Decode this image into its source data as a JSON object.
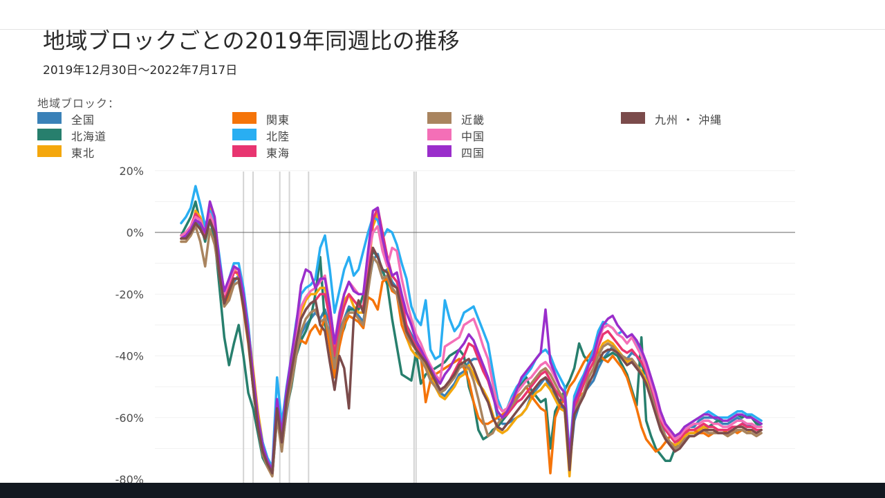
{
  "title": "地域ブロックごとの2019年同週比の推移",
  "subtitle": "2019年12月30日～2022年7月17日",
  "legend_title": "地域ブロック：",
  "chart_data": {
    "type": "line",
    "y_ticks": [
      "20%",
      "0%",
      "-20%",
      "-40%",
      "-60%",
      "-80%"
    ],
    "y_tick_values": [
      20,
      0,
      -20,
      -40,
      -60,
      -80
    ],
    "ylim": [
      -80,
      20
    ],
    "xlim": [
      0,
      122
    ],
    "grid": true,
    "legend_position": "top",
    "reference_line": 0,
    "vertical_markers": [
      13,
      15,
      20,
      22,
      26,
      48,
      49
    ],
    "series": [
      {
        "name": "全国",
        "color": "#3a81b8",
        "values": [
          -2,
          -1,
          1,
          4,
          2,
          -1,
          6,
          2,
          -12,
          -21,
          -18,
          -16,
          -14,
          -23,
          -35,
          -49,
          -62,
          -70,
          -75,
          -79,
          -60,
          -70,
          -58,
          -48,
          -40,
          -33,
          -30,
          -28,
          -26,
          -28,
          -25,
          -30,
          -42,
          -32,
          -28,
          -24,
          -25,
          -27,
          -29,
          -18,
          -9,
          -7,
          -13,
          -12,
          -16,
          -18,
          -24,
          -30,
          -33,
          -36,
          -40,
          -42,
          -45,
          -48,
          -52,
          -53,
          -51,
          -49,
          -46,
          -45,
          -42,
          -41,
          -41,
          -43,
          -47,
          -52,
          -60,
          -62,
          -62,
          -61,
          -60,
          -59,
          -57,
          -53,
          -51,
          -49,
          -47,
          -51,
          -53,
          -56,
          -58,
          -76,
          -61,
          -56,
          -52,
          -50,
          -48,
          -44,
          -41,
          -39,
          -37,
          -38,
          -40,
          -41,
          -39,
          -40,
          -43,
          -46,
          -51,
          -56,
          -62,
          -66,
          -68,
          -70,
          -69,
          -66,
          -63,
          -63,
          -61,
          -60,
          -60,
          -60,
          -61,
          -62,
          -62,
          -61,
          -60,
          -61,
          -63,
          -62,
          -63,
          -62
        ]
      },
      {
        "name": "北海道",
        "color": "#277f6d",
        "values": [
          -1,
          2,
          5,
          10,
          3,
          -3,
          4,
          -2,
          -18,
          -34,
          -43,
          -36,
          -30,
          -40,
          -52,
          -57,
          -65,
          -73,
          -76,
          -78,
          -57,
          -70,
          -57,
          -50,
          -40,
          -35,
          -32,
          -28,
          -20,
          -8,
          -30,
          -35,
          -40,
          -35,
          -31,
          -25,
          -25,
          -25,
          -20,
          -12,
          -6,
          -8,
          -12,
          -17,
          -28,
          -37,
          -46,
          -47,
          -48,
          -39,
          -49,
          -46,
          -45,
          -44,
          -43,
          -42,
          -40,
          -39,
          -38,
          -40,
          -50,
          -55,
          -64,
          -67,
          -66,
          -64,
          -63,
          -61,
          -59,
          -55,
          -51,
          -49,
          -47,
          -51,
          -53,
          -55,
          -54,
          -70,
          -58,
          -55,
          -51,
          -48,
          -44,
          -36,
          -40,
          -42,
          -41,
          -42,
          -41,
          -40,
          -39,
          -40,
          -43,
          -46,
          -51,
          -56,
          -34,
          -61,
          -66,
          -70,
          -72,
          -74,
          -74,
          -70,
          -67,
          -66,
          -65,
          -65,
          -64,
          -63,
          -63,
          -62,
          -61,
          -61,
          -61,
          -60,
          -59,
          -60,
          -59,
          -60,
          -62,
          -62
        ]
      },
      {
        "name": "東北",
        "color": "#f4a70d",
        "values": [
          -3,
          -3,
          -1,
          7,
          5,
          0,
          8,
          4,
          -10,
          -22,
          -17,
          -12,
          -14,
          -21,
          -31,
          -44,
          -58,
          -68,
          -74,
          -77,
          -55,
          -66,
          -52,
          -42,
          -34,
          -26,
          -22,
          -20,
          -20,
          -18,
          -18,
          -26,
          -38,
          -28,
          -22,
          -20,
          -24,
          -26,
          -26,
          -13,
          2,
          6,
          -2,
          -10,
          -18,
          -20,
          -25,
          -34,
          -38,
          -40,
          -41,
          -43,
          -46,
          -50,
          -53,
          -54,
          -52,
          -50,
          -47,
          -46,
          -43,
          -46,
          -49,
          -51,
          -54,
          -59,
          -64,
          -65,
          -64,
          -62,
          -60,
          -59,
          -57,
          -54,
          -52,
          -51,
          -49,
          -51,
          -54,
          -57,
          -58,
          -79,
          -57,
          -53,
          -52,
          -47,
          -44,
          -39,
          -36,
          -35,
          -36,
          -38,
          -40,
          -42,
          -41,
          -43,
          -45,
          -48,
          -53,
          -58,
          -63,
          -66,
          -68,
          -69,
          -68,
          -66,
          -65,
          -65,
          -64,
          -63,
          -64,
          -64,
          -65,
          -65,
          -66,
          -65,
          -64,
          -64,
          -65,
          -64,
          -65,
          -64
        ]
      },
      {
        "name": "関東",
        "color": "#f57409",
        "values": [
          -2,
          -2,
          0,
          3,
          1,
          -2,
          4,
          0,
          -14,
          -24,
          -20,
          -15,
          -15,
          -25,
          -36,
          -50,
          -63,
          -71,
          -76,
          -79,
          -58,
          -70,
          -56,
          -48,
          -37,
          -35,
          -36,
          -32,
          -30,
          -33,
          -27,
          -37,
          -47,
          -37,
          -30,
          -27,
          -28,
          -29,
          -31,
          -21,
          -22,
          -25,
          -16,
          -15,
          -19,
          -20,
          -30,
          -34,
          -36,
          -38,
          -40,
          -55,
          -48,
          -46,
          -45,
          -44,
          -43,
          -42,
          -41,
          -44,
          -48,
          -55,
          -60,
          -62,
          -62,
          -61,
          -60,
          -59,
          -58,
          -55,
          -53,
          -52,
          -50,
          -53,
          -55,
          -57,
          -58,
          -78,
          -60,
          -56,
          -54,
          -50,
          -48,
          -45,
          -42,
          -40,
          -38,
          -39,
          -41,
          -42,
          -40,
          -42,
          -44,
          -47,
          -52,
          -57,
          -63,
          -67,
          -69,
          -71,
          -70,
          -68,
          -66,
          -66,
          -65,
          -64,
          -64,
          -64,
          -65,
          -65,
          -66,
          -65,
          -64,
          -64,
          -65,
          -64,
          -65,
          -64
        ]
      },
      {
        "name": "北陸",
        "color": "#29aef2",
        "values": [
          3,
          5,
          8,
          15,
          9,
          2,
          7,
          3,
          -8,
          -20,
          -15,
          -10,
          -10,
          -18,
          -30,
          -46,
          -60,
          -68,
          -73,
          -76,
          -47,
          -62,
          -50,
          -40,
          -29,
          -20,
          -18,
          -17,
          -15,
          -5,
          -1,
          -12,
          -26,
          -19,
          -12,
          -8,
          -14,
          -12,
          -6,
          0,
          5,
          4,
          -2,
          1,
          0,
          -4,
          -10,
          -15,
          -24,
          -28,
          -30,
          -22,
          -38,
          -41,
          -40,
          -22,
          -28,
          -32,
          -30,
          -26,
          -25,
          -24,
          -28,
          -32,
          -36,
          -45,
          -54,
          -58,
          -57,
          -53,
          -50,
          -48,
          -46,
          -44,
          -41,
          -39,
          -38,
          -40,
          -44,
          -47,
          -50,
          -72,
          -53,
          -49,
          -46,
          -42,
          -38,
          -32,
          -29,
          -30,
          -31,
          -33,
          -32,
          -34,
          -33,
          -36,
          -40,
          -44,
          -49,
          -54,
          -59,
          -63,
          -65,
          -67,
          -66,
          -63,
          -62,
          -61,
          -60,
          -59,
          -58,
          -59,
          -60,
          -60,
          -60,
          -59,
          -58,
          -58,
          -59,
          -59,
          -60,
          -61
        ]
      },
      {
        "name": "東海",
        "color": "#e83570",
        "values": [
          -1,
          0,
          2,
          6,
          4,
          -1,
          5,
          1,
          -12,
          -22,
          -18,
          -13,
          -13,
          -22,
          -33,
          -47,
          -61,
          -70,
          -75,
          -78,
          -56,
          -68,
          -54,
          -45,
          -35,
          -28,
          -25,
          -23,
          -22,
          -20,
          -20,
          -28,
          -40,
          -30,
          -24,
          -20,
          -22,
          -24,
          -24,
          -12,
          4,
          8,
          0,
          -8,
          -14,
          -16,
          -22,
          -30,
          -34,
          -37,
          -39,
          -42,
          -45,
          -48,
          -51,
          -50,
          -48,
          -45,
          -42,
          -40,
          -36,
          -37,
          -41,
          -45,
          -48,
          -53,
          -58,
          -60,
          -59,
          -57,
          -55,
          -54,
          -52,
          -50,
          -48,
          -46,
          -45,
          -48,
          -51,
          -53,
          -55,
          -75,
          -57,
          -53,
          -49,
          -45,
          -42,
          -37,
          -33,
          -32,
          -34,
          -36,
          -38,
          -39,
          -38,
          -40,
          -42,
          -45,
          -50,
          -55,
          -61,
          -64,
          -66,
          -68,
          -67,
          -65,
          -64,
          -64,
          -63,
          -62,
          -63,
          -63,
          -64,
          -64,
          -64,
          -63,
          -63,
          -62,
          -63,
          -63,
          -64,
          -64
        ]
      },
      {
        "name": "近畿",
        "color": "#a9845f",
        "values": [
          -3,
          -3,
          -1,
          2,
          -3,
          -11,
          1,
          -4,
          -14,
          -24,
          -22,
          -17,
          -16,
          -24,
          -35,
          -50,
          -63,
          -72,
          -76,
          -79,
          -60,
          -71,
          -57,
          -49,
          -40,
          -32,
          -28,
          -26,
          -25,
          -29,
          -28,
          -33,
          -44,
          -34,
          -28,
          -26,
          -26,
          -28,
          -30,
          -19,
          -8,
          -10,
          -15,
          -14,
          -18,
          -20,
          -26,
          -33,
          -36,
          -38,
          -41,
          -44,
          -48,
          -50,
          -52,
          -51,
          -49,
          -47,
          -44,
          -43,
          -44,
          -48,
          -54,
          -61,
          -66,
          -65,
          -62,
          -60,
          -58,
          -56,
          -54,
          -52,
          -50,
          -49,
          -47,
          -45,
          -44,
          -46,
          -49,
          -52,
          -54,
          -74,
          -58,
          -55,
          -52,
          -47,
          -44,
          -40,
          -37,
          -36,
          -37,
          -39,
          -40,
          -41,
          -41,
          -43,
          -46,
          -49,
          -53,
          -58,
          -63,
          -66,
          -68,
          -70,
          -69,
          -67,
          -66,
          -66,
          -65,
          -64,
          -65,
          -65,
          -65,
          -65,
          -66,
          -65,
          -64,
          -64,
          -65,
          -65,
          -66,
          -65
        ]
      },
      {
        "name": "中国",
        "color": "#f46fb7",
        "values": [
          -1,
          0,
          2,
          5,
          4,
          0,
          6,
          2,
          -12,
          -20,
          -16,
          -12,
          -12,
          -20,
          -32,
          -46,
          -60,
          -69,
          -74,
          -77,
          -55,
          -66,
          -52,
          -42,
          -32,
          -24,
          -21,
          -19,
          -18,
          -16,
          -14,
          -24,
          -36,
          -26,
          -20,
          -16,
          -18,
          -20,
          -20,
          -8,
          0,
          2,
          -6,
          -11,
          -5,
          -6,
          -15,
          -22,
          -28,
          -33,
          -36,
          -40,
          -43,
          -46,
          -48,
          -37,
          -36,
          -35,
          -34,
          -30,
          -29,
          -28,
          -32,
          -37,
          -41,
          -49,
          -56,
          -58,
          -57,
          -54,
          -52,
          -50,
          -48,
          -47,
          -45,
          -43,
          -42,
          -44,
          -47,
          -50,
          -52,
          -73,
          -55,
          -51,
          -47,
          -43,
          -40,
          -35,
          -31,
          -30,
          -31,
          -33,
          -34,
          -36,
          -34,
          -37,
          -40,
          -44,
          -49,
          -54,
          -60,
          -63,
          -65,
          -67,
          -66,
          -64,
          -63,
          -62,
          -62,
          -61,
          -61,
          -62,
          -62,
          -63,
          -63,
          -62,
          -61,
          -61,
          -62,
          -62,
          -63,
          -63
        ]
      },
      {
        "name": "四国",
        "color": "#9a2ecb",
        "values": [
          -2,
          -1,
          1,
          4,
          3,
          0,
          10,
          5,
          -10,
          -19,
          -15,
          -11,
          -12,
          -20,
          -32,
          -46,
          -60,
          -69,
          -74,
          -77,
          -54,
          -65,
          -51,
          -40,
          -30,
          -17,
          -12,
          -13,
          -18,
          -15,
          -15,
          -24,
          -36,
          -27,
          -20,
          -16,
          -19,
          -20,
          -20,
          -6,
          7,
          8,
          -2,
          -9,
          -14,
          -13,
          -20,
          -26,
          -30,
          -35,
          -38,
          -41,
          -44,
          -47,
          -49,
          -46,
          -44,
          -41,
          -38,
          -36,
          -33,
          -35,
          -39,
          -43,
          -47,
          -53,
          -58,
          -60,
          -58,
          -55,
          -51,
          -47,
          -45,
          -43,
          -41,
          -39,
          -25,
          -42,
          -46,
          -50,
          -52,
          -73,
          -55,
          -51,
          -47,
          -43,
          -40,
          -34,
          -30,
          -28,
          -27,
          -30,
          -32,
          -34,
          -33,
          -35,
          -38,
          -42,
          -47,
          -52,
          -58,
          -62,
          -64,
          -66,
          -65,
          -63,
          -62,
          -61,
          -60,
          -59,
          -59,
          -60,
          -60,
          -61,
          -61,
          -60,
          -59,
          -59,
          -60,
          -60,
          -61,
          -62
        ]
      },
      {
        "name": "九州・沖縄",
        "color": "#7b4b4b",
        "values": [
          -2,
          -2,
          0,
          3,
          1,
          -2,
          4,
          0,
          -14,
          -23,
          -19,
          -15,
          -15,
          -24,
          -35,
          -50,
          -63,
          -71,
          -75,
          -78,
          -57,
          -68,
          -54,
          -45,
          -36,
          -28,
          -25,
          -23,
          -22,
          -30,
          -32,
          -42,
          -51,
          -40,
          -44,
          -57,
          -28,
          -22,
          -26,
          -15,
          -5,
          -8,
          -12,
          -13,
          -17,
          -18,
          -25,
          -32,
          -35,
          -38,
          -40,
          -42,
          -45,
          -48,
          -51,
          -50,
          -48,
          -46,
          -43,
          -42,
          -41,
          -44,
          -48,
          -52,
          -55,
          -60,
          -63,
          -64,
          -62,
          -60,
          -58,
          -56,
          -54,
          -52,
          -50,
          -48,
          -47,
          -49,
          -52,
          -55,
          -57,
          -77,
          -59,
          -56,
          -53,
          -49,
          -46,
          -42,
          -39,
          -38,
          -38,
          -39,
          -41,
          -43,
          -42,
          -44,
          -46,
          -49,
          -54,
          -59,
          -64,
          -67,
          -69,
          -71,
          -70,
          -68,
          -66,
          -66,
          -65,
          -64,
          -64,
          -64,
          -65,
          -65,
          -65,
          -64,
          -63,
          -63,
          -64,
          -64,
          -65,
          -64
        ]
      }
    ]
  }
}
